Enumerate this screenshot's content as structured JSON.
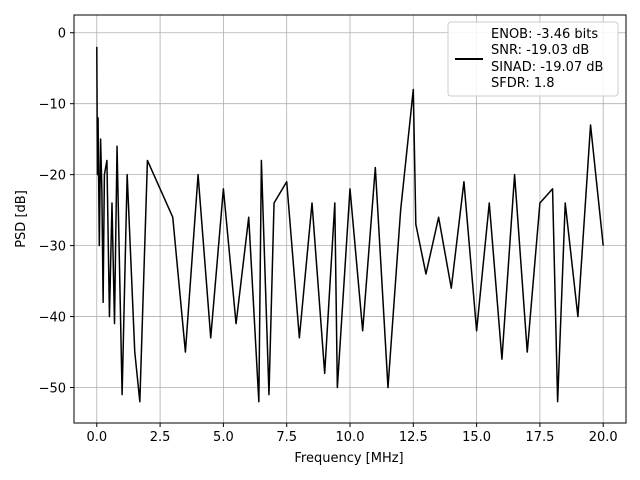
{
  "chart_data": {
    "type": "line",
    "title": "",
    "xlabel": "Frequency [MHz]",
    "ylabel": "PSD [dB]",
    "xlim": [
      -0.9,
      20.9
    ],
    "ylim": [
      -55,
      2.5
    ],
    "x_ticks": [
      0.0,
      2.5,
      5.0,
      7.5,
      10.0,
      12.5,
      15.0,
      17.5,
      20.0
    ],
    "x_tick_labels": [
      "0.0",
      "2.5",
      "5.0",
      "7.5",
      "10.0",
      "12.5",
      "15.0",
      "17.5",
      "20.0"
    ],
    "y_ticks": [
      0,
      -10,
      -20,
      -30,
      -40,
      -50
    ],
    "y_tick_labels": [
      "0",
      "−10",
      "−20",
      "−30",
      "−40",
      "−50"
    ],
    "grid": true,
    "legend_position": "upper right",
    "line_color": "#000000",
    "legend_lines": [
      "ENOB: -3.46 bits",
      "SNR: -19.03 dB",
      "SINAD: -19.07 dB",
      "SFDR: 1.8"
    ],
    "series": [
      {
        "x": [
          0.0,
          0.025,
          0.05,
          0.1,
          0.15,
          0.2,
          0.25,
          0.3,
          0.4,
          0.5,
          0.6,
          0.7,
          0.8,
          1.0,
          1.2,
          1.5,
          1.7,
          2.0,
          2.5,
          3.0,
          3.5,
          4.0,
          4.5,
          5.0,
          5.5,
          6.0,
          6.4,
          6.5,
          6.8,
          7.0,
          7.5,
          8.0,
          8.5,
          9.0,
          9.4,
          9.5,
          10.0,
          10.5,
          11.0,
          11.5,
          12.0,
          12.5,
          12.6,
          13.0,
          13.5,
          14.0,
          14.5,
          15.0,
          15.5,
          16.0,
          16.5,
          17.0,
          17.5,
          18.0,
          18.2,
          18.5,
          19.0,
          19.5,
          20.0
        ],
        "y": [
          -2,
          -20,
          -12,
          -30,
          -15,
          -22,
          -38,
          -20,
          -18,
          -40,
          -24,
          -41,
          -16,
          -51,
          -20,
          -45,
          -52,
          -18,
          -22,
          -26,
          -45,
          -20,
          -43,
          -22,
          -41,
          -26,
          -52,
          -18,
          -51,
          -24,
          -21,
          -43,
          -24,
          -48,
          -24,
          -50,
          -22,
          -42,
          -19,
          -50,
          -25,
          -8,
          -27,
          -34,
          -26,
          -36,
          -21,
          -42,
          -24,
          -46,
          -20,
          -45,
          -24,
          -22,
          -52,
          -24,
          -40,
          -13,
          -30
        ]
      }
    ]
  }
}
